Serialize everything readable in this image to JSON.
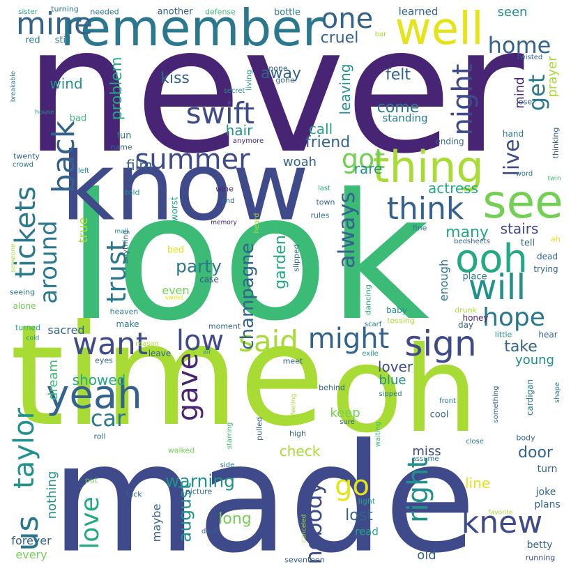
{
  "words": [
    "never",
    "look",
    "made",
    "time",
    "oh",
    "know",
    "remember",
    "well",
    "thing",
    "see",
    "ooh",
    "will",
    "sign",
    "want",
    "yeah",
    "swift",
    "summer",
    "back",
    "mine",
    "one",
    "home",
    "night",
    "live",
    "get",
    "got",
    "think",
    "hope",
    "knew",
    "said",
    "low",
    "might",
    "gave",
    "car",
    "trust",
    "tickets",
    "around",
    "taylor",
    "us",
    "love",
    "go",
    "right",
    "nobody",
    "always",
    "champagne",
    "party",
    "warning",
    "august",
    "garden",
    "lost",
    "long",
    "kiss",
    "away",
    "felt",
    "come",
    "call",
    "friend",
    "hair",
    "problem",
    "wind",
    "cruel",
    "seen",
    "learned",
    "mind",
    "prayer",
    "tossing",
    "film",
    "woah",
    "rare",
    "actress",
    "stairs",
    "many",
    "say",
    "true",
    "even",
    "sacred",
    "lover",
    "blue",
    "showed",
    "keep",
    "check",
    "miss",
    "door",
    "take",
    "young",
    "enough",
    "line",
    "nothing",
    "forever",
    "every",
    "dream",
    "maybe",
    "old",
    "read",
    "betty",
    "running",
    "joke",
    "plans",
    "turn",
    "light",
    "bottle",
    "another",
    "defense",
    "needed",
    "turning",
    "sister",
    "red",
    "still",
    "none",
    "gone",
    "living",
    "secret",
    "breakable",
    "house",
    "fun",
    "bad",
    "standing",
    "anymore",
    "name",
    "twenty",
    "crowd",
    "left",
    "told",
    "wine",
    "end",
    "last",
    "town",
    "rules",
    "heard",
    "memory",
    "worst",
    "mall",
    "bed",
    "case",
    "anything",
    "fine",
    "tell",
    "ah",
    "trying",
    "dead",
    "bedsheets",
    "place",
    "alone",
    "seeing",
    "someone",
    "slipped",
    "dancing",
    "heaven",
    "make",
    "sweet",
    "baby",
    "drunk",
    "honey",
    "day",
    "little",
    "hear",
    "cold",
    "turned",
    "reason",
    "leave",
    "moment",
    "air",
    "eyes",
    "meet",
    "exile",
    "scarf",
    "behind",
    "something",
    "cardigan",
    "shape",
    "waiting",
    "sipped",
    "starring",
    "pulled",
    "feeling",
    "high",
    "sure",
    "front",
    "cool",
    "roll",
    "walked",
    "body",
    "close",
    "assume",
    "side",
    "put",
    "fuck",
    "picture",
    "canceled",
    "favorite",
    "devil",
    "seventeen",
    "ending",
    "hand",
    "thinking",
    "word",
    "twin",
    "lose",
    "twisted",
    "bar",
    "leaving"
  ],
  "colors": {
    "dark_purple": "#482475",
    "indigo": "#3e4a89",
    "blue": "#33638d",
    "steel": "#2a788e",
    "teal": "#21918c",
    "sea": "#23a983",
    "green": "#3bbb75",
    "lime": "#74d055",
    "yellowgreen": "#a8db34",
    "yellow": "#e5e419"
  }
}
